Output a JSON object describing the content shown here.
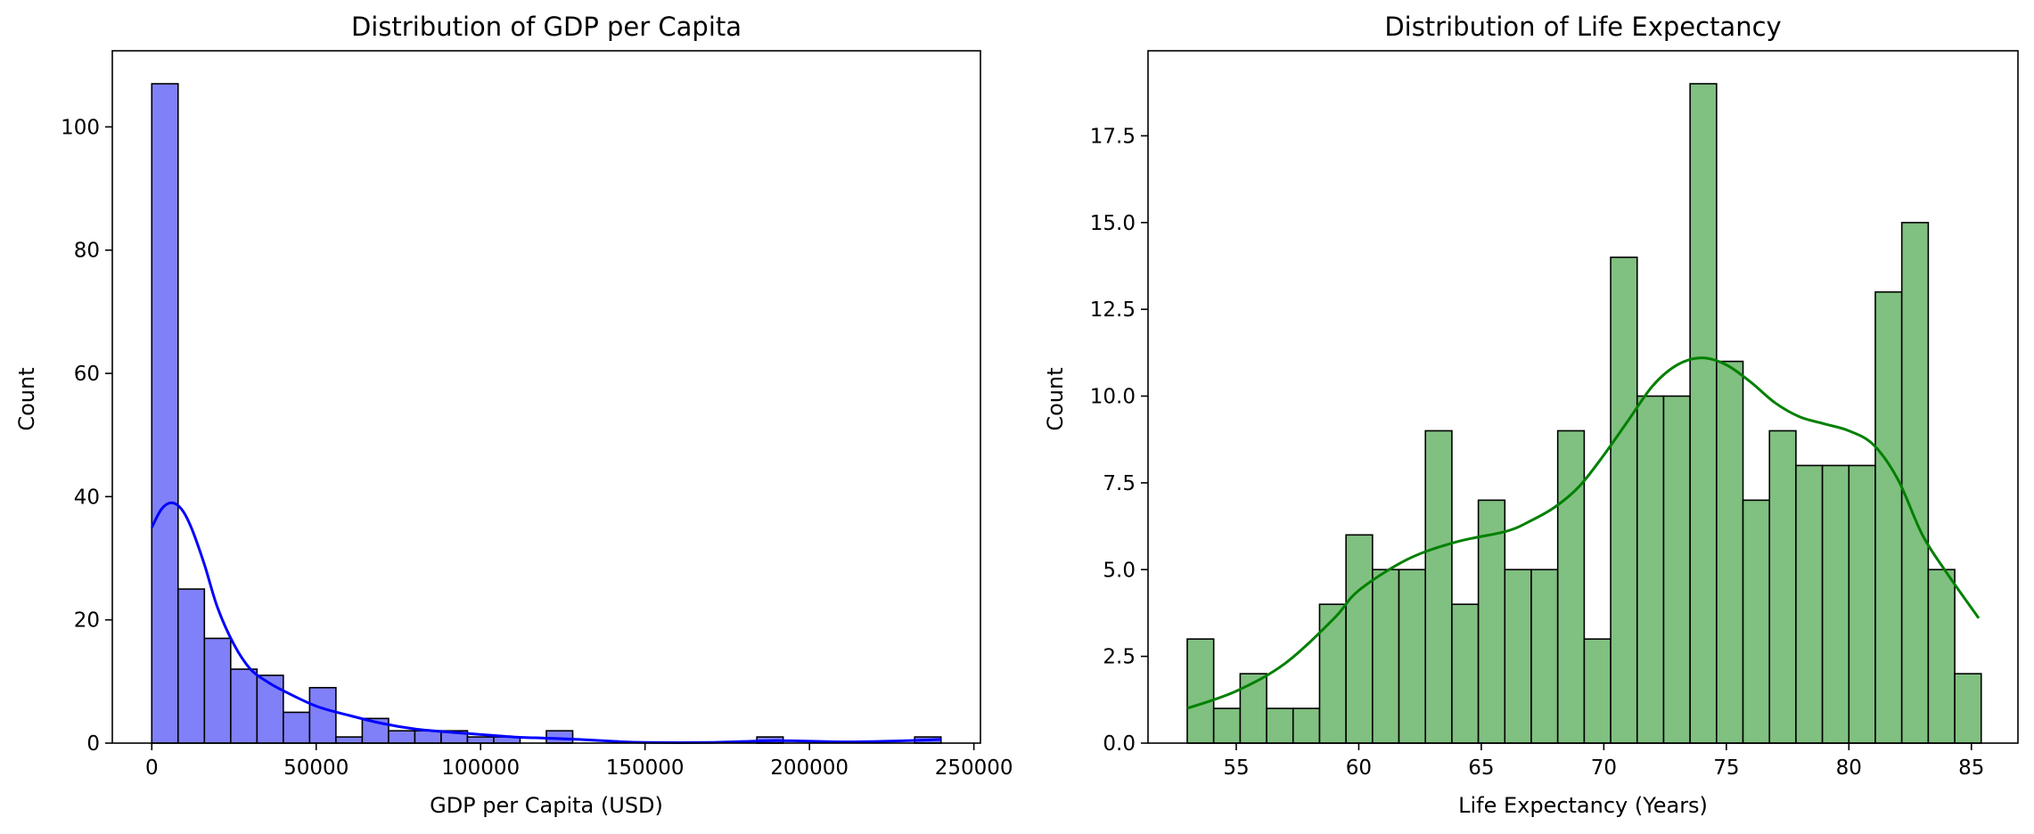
{
  "chart_data": [
    {
      "type": "bar",
      "title": "Distribution of GDP per Capita",
      "xlabel": "GDP per Capita (USD)",
      "ylabel": "Count",
      "xlim": [
        -12000,
        252000
      ],
      "ylim": [
        0,
        112.35
      ],
      "xticks": [
        0,
        50000,
        100000,
        150000,
        200000,
        250000
      ],
      "yticks": [
        0,
        20,
        40,
        60,
        80,
        100
      ],
      "bin_start": 0,
      "bin_width": 8000,
      "counts": [
        107,
        25,
        17,
        12,
        11,
        5,
        9,
        1,
        4,
        2,
        2,
        2,
        1,
        1,
        0,
        2,
        0,
        0,
        0,
        0,
        0,
        0,
        0,
        1,
        0,
        0,
        0,
        0,
        0,
        1
      ],
      "kde": {
        "x": [
          0,
          3000,
          6000,
          9000,
          12000,
          16000,
          20000,
          25000,
          30000,
          35000,
          40000,
          50000,
          60000,
          70000,
          80000,
          90000,
          100000,
          110000,
          120000,
          130000,
          140000,
          150000,
          170000,
          190000,
          210000,
          230000,
          240000
        ],
        "y": [
          35,
          38,
          39,
          38,
          35,
          29,
          22,
          16,
          12,
          10,
          8.5,
          6,
          4.5,
          3.2,
          2.3,
          1.8,
          1.4,
          1.0,
          0.8,
          0.6,
          0.3,
          0.1,
          0.1,
          0.4,
          0.2,
          0.4,
          0.6
        ]
      },
      "bar_color": "#8080f8",
      "line_color": "#0000ff"
    },
    {
      "type": "bar",
      "title": "Distribution of Life Expectancy",
      "xlabel": "Life Expectancy (Years)",
      "ylabel": "Count",
      "xlim": [
        51.4,
        86.9
      ],
      "ylim": [
        0,
        19.95
      ],
      "xticks": [
        55,
        60,
        65,
        70,
        75,
        80,
        85
      ],
      "yticks": [
        0,
        2.5,
        5.0,
        7.5,
        10.0,
        12.5,
        15.0,
        17.5
      ],
      "ytick_labels": [
        "0.0",
        "2.5",
        "5.0",
        "7.5",
        "10.0",
        "12.5",
        "15.0",
        "17.5"
      ],
      "bin_start": 53.0,
      "bin_width": 1.08,
      "counts": [
        3,
        1,
        2,
        1,
        1,
        4,
        6,
        5,
        5,
        9,
        4,
        7,
        5,
        5,
        9,
        3,
        14,
        10,
        10,
        19,
        11,
        7,
        9,
        8,
        8,
        8,
        13,
        15,
        5,
        2
      ],
      "kde": {
        "x": [
          53,
          55,
          57,
          59,
          60,
          62,
          64,
          66,
          67,
          68,
          69,
          70,
          71,
          72,
          73,
          74,
          75,
          76,
          77,
          78,
          79,
          80,
          81,
          82,
          83,
          84,
          85.3
        ],
        "y": [
          1.0,
          1.5,
          2.3,
          3.6,
          4.4,
          5.3,
          5.8,
          6.1,
          6.4,
          6.8,
          7.4,
          8.3,
          9.3,
          10.3,
          10.9,
          11.1,
          10.9,
          10.4,
          9.8,
          9.4,
          9.2,
          9.0,
          8.6,
          7.6,
          6.0,
          4.9,
          3.6
        ]
      },
      "bar_color": "#80c080",
      "line_color": "#008000"
    }
  ]
}
